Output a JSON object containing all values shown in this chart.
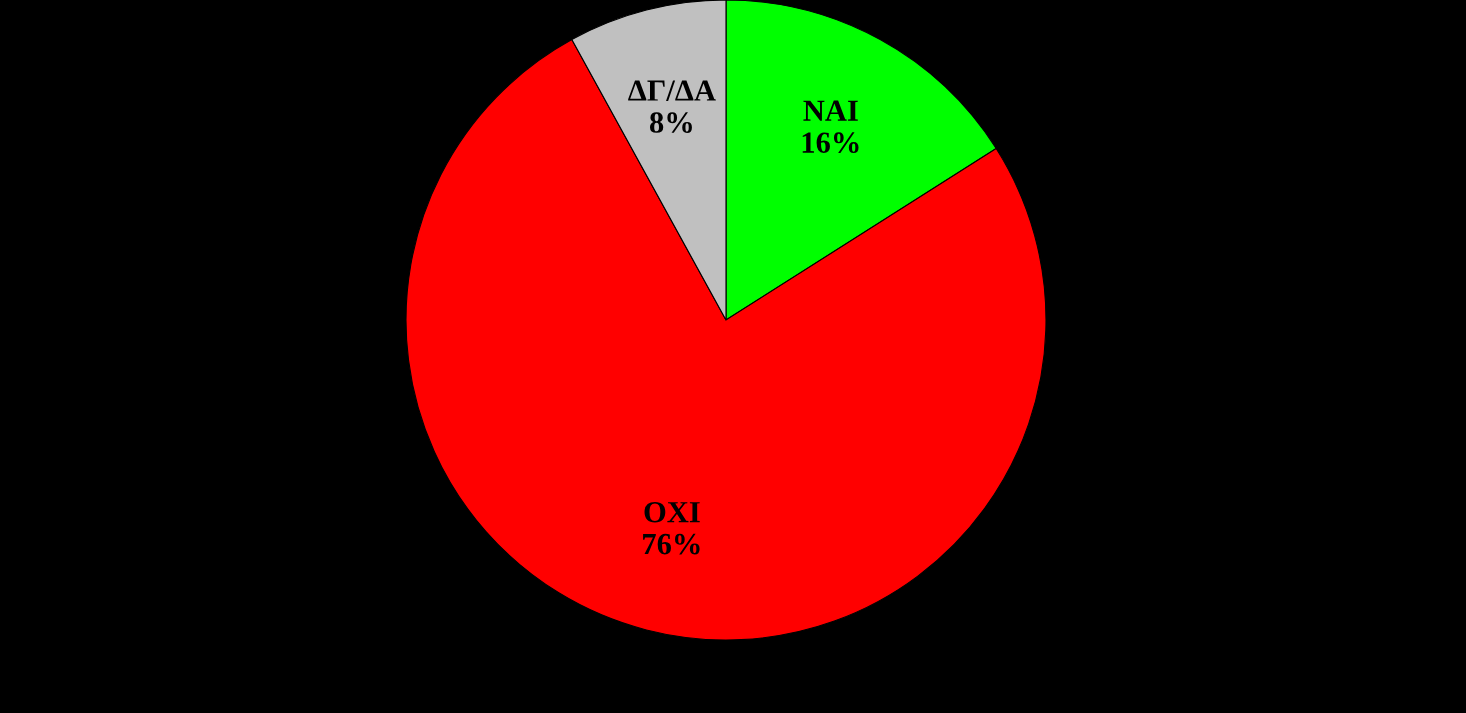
{
  "chart_data": {
    "type": "pie",
    "categories": [
      "NAI",
      "OXI",
      "ΔΓ/ΔΑ"
    ],
    "values": [
      16,
      76,
      8
    ],
    "value_labels": [
      "16%",
      "76%",
      "8%"
    ],
    "colors": [
      "#00ff00",
      "#ff0000",
      "#c0c0c0"
    ],
    "legend": false
  }
}
